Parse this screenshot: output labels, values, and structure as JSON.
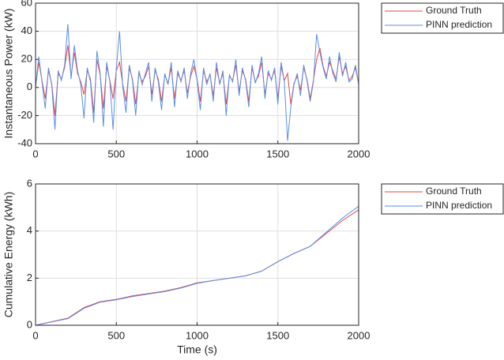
{
  "chart_data": [
    {
      "type": "line",
      "ylabel": "Instantaneous Power (kW)",
      "x": [
        0,
        20,
        40,
        60,
        80,
        100,
        120,
        140,
        160,
        180,
        200,
        220,
        240,
        260,
        280,
        300,
        320,
        340,
        360,
        380,
        400,
        420,
        440,
        460,
        480,
        500,
        520,
        540,
        560,
        580,
        600,
        620,
        640,
        660,
        680,
        700,
        720,
        740,
        760,
        780,
        800,
        820,
        840,
        860,
        880,
        900,
        920,
        940,
        960,
        980,
        1000,
        1020,
        1040,
        1060,
        1080,
        1100,
        1120,
        1140,
        1160,
        1180,
        1200,
        1220,
        1240,
        1260,
        1280,
        1300,
        1320,
        1340,
        1360,
        1380,
        1400,
        1420,
        1440,
        1460,
        1480,
        1500,
        1520,
        1540,
        1560,
        1580,
        1600,
        1620,
        1640,
        1660,
        1680,
        1700,
        1720,
        1740,
        1760,
        1780,
        1800,
        1820,
        1840,
        1860,
        1880,
        1900,
        1920,
        1940,
        1960,
        1980,
        2000
      ],
      "series": [
        {
          "name": "Ground Truth",
          "color": "#e0474c",
          "values": [
            0,
            18,
            5,
            -8,
            12,
            3,
            -20,
            10,
            6,
            14,
            30,
            8,
            25,
            10,
            4,
            -5,
            12,
            6,
            -18,
            20,
            9,
            -15,
            15,
            5,
            -8,
            12,
            18,
            2,
            -10,
            14,
            6,
            -12,
            10,
            4,
            8,
            15,
            -5,
            12,
            6,
            -10,
            9,
            3,
            14,
            -8,
            10,
            5,
            12,
            -4,
            8,
            15,
            6,
            -10,
            12,
            4,
            9,
            -6,
            14,
            3,
            10,
            -12,
            8,
            5,
            16,
            -3,
            12,
            6,
            -10,
            14,
            4,
            8,
            18,
            -5,
            10,
            6,
            12,
            -8,
            15,
            5,
            10,
            -12,
            3,
            8,
            -2,
            14,
            6,
            -8,
            5,
            20,
            28,
            15,
            8,
            18,
            12,
            6,
            22,
            10,
            15,
            5,
            8,
            14,
            3
          ]
        },
        {
          "name": "PINN prediction",
          "color": "#5b8ee6",
          "values": [
            0,
            22,
            4,
            -15,
            14,
            2,
            -30,
            12,
            5,
            16,
            45,
            6,
            30,
            12,
            2,
            -22,
            14,
            4,
            -25,
            26,
            10,
            -28,
            18,
            4,
            -30,
            14,
            40,
            0,
            -18,
            16,
            5,
            -20,
            12,
            2,
            10,
            18,
            -10,
            14,
            4,
            -16,
            10,
            2,
            18,
            -14,
            12,
            4,
            14,
            -8,
            10,
            20,
            5,
            -16,
            14,
            2,
            10,
            -10,
            18,
            2,
            12,
            -20,
            9,
            4,
            20,
            -6,
            14,
            5,
            -14,
            16,
            3,
            10,
            22,
            -8,
            12,
            5,
            14,
            -12,
            18,
            4,
            -38,
            -14,
            2,
            10,
            -6,
            16,
            5,
            -10,
            4,
            38,
            25,
            14,
            6,
            22,
            10,
            4,
            25,
            8,
            18,
            4,
            6,
            16,
            2
          ]
        }
      ],
      "xlim": [
        0,
        2000
      ],
      "ylim": [
        -40,
        60
      ],
      "xticks": [
        0,
        500,
        1000,
        1500,
        2000
      ],
      "yticks": [
        -40,
        -20,
        0,
        20,
        40,
        60
      ],
      "grid": true,
      "legend": "northeastoutside"
    },
    {
      "type": "line",
      "ylabel": "Cumulative Energy (kWh)",
      "xlabel": "Time (s)",
      "x": [
        0,
        100,
        200,
        300,
        400,
        500,
        600,
        700,
        800,
        900,
        1000,
        1100,
        1200,
        1300,
        1400,
        1500,
        1600,
        1700,
        1800,
        1900,
        2000
      ],
      "series": [
        {
          "name": "Ground Truth",
          "color": "#e0474c",
          "values": [
            0,
            0.15,
            0.3,
            0.75,
            1.0,
            1.1,
            1.25,
            1.35,
            1.45,
            1.6,
            1.8,
            1.9,
            2.0,
            2.1,
            2.3,
            2.7,
            3.05,
            3.35,
            3.9,
            4.45,
            4.9
          ]
        },
        {
          "name": "PINN prediction",
          "color": "#5b8ee6",
          "values": [
            0,
            0.14,
            0.28,
            0.72,
            0.98,
            1.08,
            1.22,
            1.33,
            1.43,
            1.58,
            1.78,
            1.9,
            2.0,
            2.1,
            2.3,
            2.7,
            3.05,
            3.35,
            3.95,
            4.55,
            5.05
          ]
        }
      ],
      "xlim": [
        0,
        2000
      ],
      "ylim": [
        0,
        6
      ],
      "xticks": [
        0,
        500,
        1000,
        1500,
        2000
      ],
      "yticks": [
        0,
        2,
        4,
        6
      ],
      "grid": true,
      "legend": "northeastoutside"
    }
  ]
}
